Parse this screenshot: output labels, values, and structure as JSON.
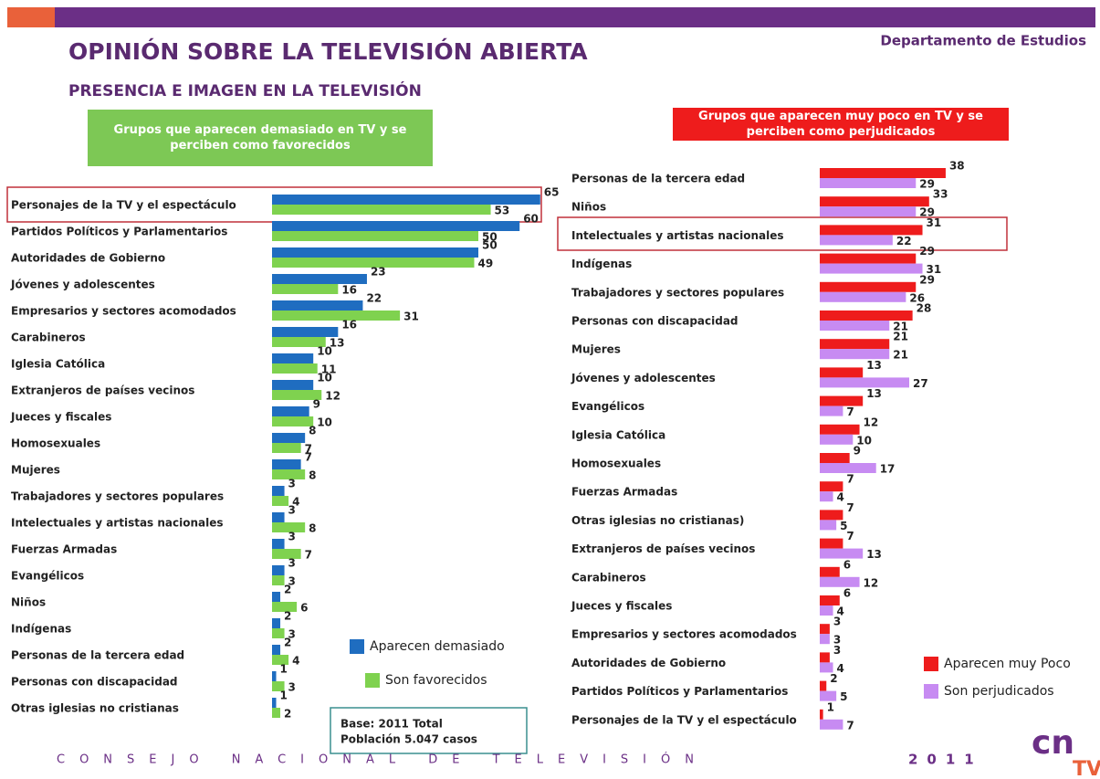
{
  "header": {
    "title": "OPINIÓN SOBRE LA TELEVISIÓN ABIERTA",
    "subtitle": "PRESENCIA E IMAGEN EN LA TELEVISIÓN",
    "department": "Departamento de Estudios"
  },
  "note": [
    "Base: 2011 Total",
    "Población 5.047 casos"
  ],
  "footer": {
    "organization": "CONSEJO NACIONAL DE TELEVISIÓN",
    "year": "2011",
    "logo": [
      "cn",
      "TV"
    ]
  },
  "chart_data": [
    {
      "type": "bar",
      "orientation": "horizontal",
      "title": "Grupos que aparecen demasiado en TV y se perciben como favorecidos",
      "categories": [
        "Personajes de la TV y el espectáculo",
        "Partidos Políticos y Parlamentarios",
        "Autoridades de Gobierno",
        "Jóvenes y adolescentes",
        "Empresarios y sectores acomodados",
        "Carabineros",
        "Iglesia Católica",
        "Extranjeros de países vecinos",
        "Jueces y fiscales",
        "Homosexuales",
        "Mujeres",
        "Trabajadores y sectores populares",
        "Intelectuales y artistas nacionales",
        "Fuerzas Armadas",
        "Evangélicos",
        "Niños",
        "Indígenas",
        "Personas de la tercera edad",
        "Personas con discapacidad",
        "Otras iglesias no cristianas"
      ],
      "series": [
        {
          "name": "Aparecen demasiado",
          "color": "#1f6dc0",
          "values": [
            65,
            60,
            50,
            23,
            22,
            16,
            10,
            10,
            9,
            8,
            7,
            3,
            3,
            3,
            3,
            2,
            2,
            2,
            1,
            1
          ]
        },
        {
          "name": "Son favorecidos",
          "color": "#7fd24f",
          "values": [
            53,
            50,
            49,
            16,
            31,
            13,
            11,
            12,
            10,
            7,
            8,
            4,
            8,
            7,
            3,
            6,
            3,
            4,
            3,
            2
          ]
        }
      ]
    },
    {
      "type": "bar",
      "orientation": "horizontal",
      "title": "Grupos que aparecen muy poco en TV y se perciben como perjudicados",
      "categories": [
        "Personas de la tercera edad",
        "Niños",
        "Intelectuales y artistas nacionales",
        "Indígenas",
        "Trabajadores y sectores populares",
        "Personas con discapacidad",
        "Mujeres",
        "Jóvenes y adolescentes",
        "Evangélicos",
        "Iglesia Católica",
        "Homosexuales",
        "Fuerzas Armadas",
        "Otras iglesias no cristianas)",
        "Extranjeros de países vecinos",
        "Carabineros",
        "Jueces y fiscales",
        "Empresarios y sectores acomodados",
        "Autoridades de Gobierno",
        "Partidos Políticos y Parlamentarios",
        "Personajes de la TV y el espectáculo"
      ],
      "series": [
        {
          "name": "Aparecen muy Poco",
          "color": "#ee1c1c",
          "values": [
            38,
            33,
            31,
            29,
            29,
            28,
            21,
            13,
            13,
            12,
            9,
            7,
            7,
            7,
            6,
            6,
            3,
            3,
            2,
            1
          ]
        },
        {
          "name": "Son perjudicados",
          "color": "#c78bf2",
          "values": [
            29,
            29,
            22,
            31,
            26,
            21,
            21,
            27,
            7,
            10,
            17,
            4,
            5,
            13,
            12,
            4,
            3,
            4,
            5,
            7
          ]
        }
      ]
    }
  ]
}
